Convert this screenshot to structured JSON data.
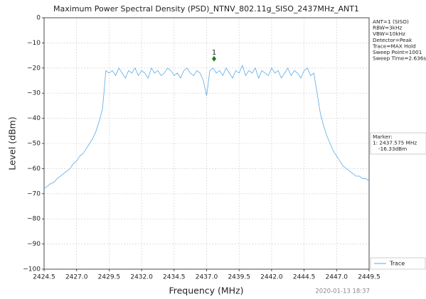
{
  "chart_data": {
    "type": "line",
    "title": "Maximum Power Spectral Density (PSD)_NTNV_802.11g_SISO_2437MHz_ANT1",
    "xlabel": "Frequency (MHz)",
    "ylabel": "Level (dBm)",
    "xlim": [
      2424.5,
      2449.5
    ],
    "ylim": [
      -100,
      0
    ],
    "xticks": [
      2424.5,
      {
        "value": 2427,
        "label": "2427.0"
      },
      2429.5,
      {
        "value": 2432,
        "label": "2432.0"
      },
      2434.5,
      {
        "value": 2437,
        "label": "2437.0"
      },
      2439.5,
      {
        "value": 2442,
        "label": "2442.0"
      },
      2444.5,
      {
        "value": 2447,
        "label": "2447.0"
      },
      2449.5
    ],
    "yticks": [
      0,
      {
        "value": -10,
        "label": "−10"
      },
      {
        "value": -20,
        "label": "−20"
      },
      {
        "value": -30,
        "label": "−30"
      },
      {
        "value": -40,
        "label": "−40"
      },
      {
        "value": -50,
        "label": "−50"
      },
      {
        "value": -60,
        "label": "−60"
      },
      {
        "value": -70,
        "label": "−70"
      },
      {
        "value": -80,
        "label": "−80"
      },
      {
        "value": -90,
        "label": "−90"
      },
      {
        "value": -100,
        "label": "−100"
      }
    ],
    "grid": true,
    "x": [
      2424.5,
      2424.75,
      2425,
      2425.25,
      2425.5,
      2425.75,
      2426,
      2426.25,
      2426.5,
      2426.75,
      2427,
      2427.25,
      2427.5,
      2427.75,
      2428,
      2428.25,
      2428.5,
      2428.75,
      2429,
      2429.25,
      2429.5,
      2429.75,
      2430,
      2430.25,
      2430.5,
      2430.75,
      2431,
      2431.25,
      2431.5,
      2431.75,
      2432,
      2432.25,
      2432.5,
      2432.75,
      2433,
      2433.25,
      2433.5,
      2433.75,
      2434,
      2434.25,
      2434.5,
      2434.75,
      2435,
      2435.25,
      2435.5,
      2435.75,
      2436,
      2436.25,
      2436.5,
      2436.75,
      2437,
      2437.25,
      2437.5,
      2437.75,
      2438,
      2438.25,
      2438.5,
      2438.75,
      2439,
      2439.25,
      2439.5,
      2439.75,
      2440,
      2440.25,
      2440.5,
      2440.75,
      2441,
      2441.25,
      2441.5,
      2441.75,
      2442,
      2442.25,
      2442.5,
      2442.75,
      2443,
      2443.25,
      2443.5,
      2443.75,
      2444,
      2444.25,
      2444.5,
      2444.75,
      2445,
      2445.25,
      2445.5,
      2445.75,
      2446,
      2446.25,
      2446.5,
      2446.75,
      2447,
      2447.25,
      2447.5,
      2447.75,
      2448,
      2448.25,
      2448.5,
      2448.75,
      2449,
      2449.25,
      2449.5
    ],
    "series": [
      {
        "name": "Trace",
        "color": "#5aa9e6",
        "values": [
          -68,
          -67,
          -66,
          -65.5,
          -64,
          -63,
          -62,
          -61,
          -60,
          -58,
          -57,
          -55,
          -54,
          -52,
          -50,
          -48,
          -45,
          -41,
          -36,
          -21,
          -22,
          -21,
          -23,
          -20,
          -22,
          -24,
          -21,
          -22,
          -20,
          -23,
          -21,
          -22,
          -24,
          -20,
          -22,
          -21,
          -23,
          -22,
          -20,
          -21,
          -23,
          -22,
          -24,
          -21,
          -20,
          -22,
          -23,
          -21,
          -22,
          -25,
          -31,
          -21,
          -20,
          -22,
          -21,
          -23,
          -20,
          -22,
          -24,
          -21,
          -22,
          -19,
          -23,
          -21,
          -22,
          -20,
          -24,
          -21,
          -22,
          -23,
          -20,
          -22,
          -21,
          -24,
          -22,
          -20,
          -23,
          -21,
          -22,
          -24,
          -21,
          -20,
          -23,
          -22,
          -30,
          -38,
          -43,
          -47,
          -50,
          -53,
          -55,
          -57,
          -59,
          -60,
          -61,
          -62,
          -63,
          -63,
          -64,
          -64,
          -65
        ]
      }
    ],
    "marker": {
      "label": "1",
      "x": 2437.575,
      "value": -16.33
    },
    "info": [
      "ANT=1 (SISO)",
      "RBW=3kHz",
      "VBW=10kHz",
      "Detector=Peak",
      "Trace=MAX Hold",
      "Sweep Point=1001",
      "Sweep Time=2.636s"
    ],
    "marker_box": [
      "Marker:",
      "1: 2437.575 MHz",
      "-16.33dBm"
    ],
    "timestamp": "2020-01-13 18:37"
  }
}
